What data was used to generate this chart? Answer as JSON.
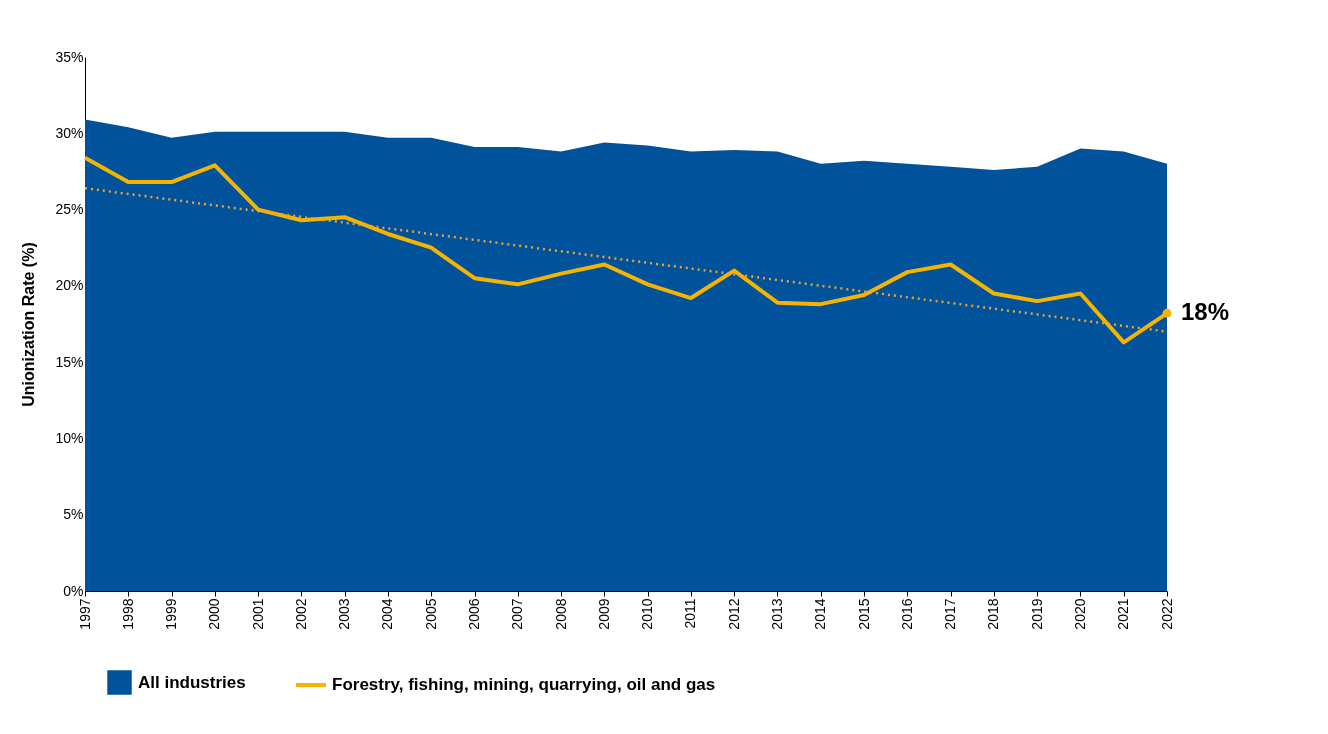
{
  "chart_data": {
    "type": "area",
    "ylabel": "Unionization Rate (%)",
    "categories": [
      "1997",
      "1998",
      "1999",
      "2000",
      "2001",
      "2002",
      "2003",
      "2004",
      "2005",
      "2006",
      "2007",
      "2008",
      "2009",
      "2010",
      "2011",
      "2012",
      "2013",
      "2014",
      "2015",
      "2016",
      "2017",
      "2018",
      "2019",
      "2020",
      "2021",
      "2022"
    ],
    "series": [
      {
        "name": "All industries",
        "color": "#00529b",
        "values": [
          30.9,
          30.4,
          29.7,
          30.1,
          30.1,
          30.1,
          30.1,
          29.7,
          29.7,
          29.1,
          29.1,
          28.8,
          29.4,
          29.2,
          28.8,
          28.9,
          28.8,
          28.0,
          28.2,
          28.0,
          27.8,
          27.6,
          27.8,
          29.0,
          28.8,
          28.0
        ]
      },
      {
        "name": "Forestry, fishing, mining, quarrying, oil and gas",
        "type": "line",
        "color": "#f5b400",
        "values": [
          28.4,
          26.8,
          26.8,
          27.9,
          25.0,
          24.3,
          24.5,
          23.4,
          22.5,
          20.5,
          20.1,
          20.8,
          21.4,
          20.1,
          19.2,
          21.0,
          18.9,
          18.8,
          19.4,
          20.9,
          21.4,
          19.5,
          19.0,
          19.5,
          16.3,
          18.2
        ]
      },
      {
        "type": "line",
        "color": "#f0a030",
        "line_style": "dotted",
        "values": [
          26.4,
          null,
          null,
          null,
          null,
          null,
          null,
          null,
          null,
          null,
          null,
          null,
          null,
          null,
          null,
          null,
          null,
          null,
          null,
          null,
          null,
          null,
          null,
          null,
          null,
          17.0
        ]
      },
      {
        "type": "scatter",
        "color": "#f5b400",
        "values": [
          null,
          null,
          null,
          null,
          null,
          null,
          null,
          null,
          null,
          null,
          null,
          null,
          null,
          null,
          null,
          null,
          null,
          null,
          null,
          null,
          null,
          null,
          null,
          null,
          null,
          18.2
        ]
      }
    ],
    "ylim": [
      0,
      35
    ],
    "yticks": [
      {
        "value": 0,
        "label": "0%"
      },
      {
        "value": 5,
        "label": "5%"
      },
      {
        "value": 10,
        "label": "10%"
      },
      {
        "value": 15,
        "label": "15%"
      },
      {
        "value": 20,
        "label": "20%"
      },
      {
        "value": 25,
        "label": "25%"
      },
      {
        "value": 30,
        "label": "30%"
      },
      {
        "value": 35,
        "label": "35%"
      }
    ],
    "annotations": [
      {
        "text": "18%",
        "x": "2022",
        "y": 18.2
      }
    ],
    "grid": false,
    "legend": "bottom"
  }
}
